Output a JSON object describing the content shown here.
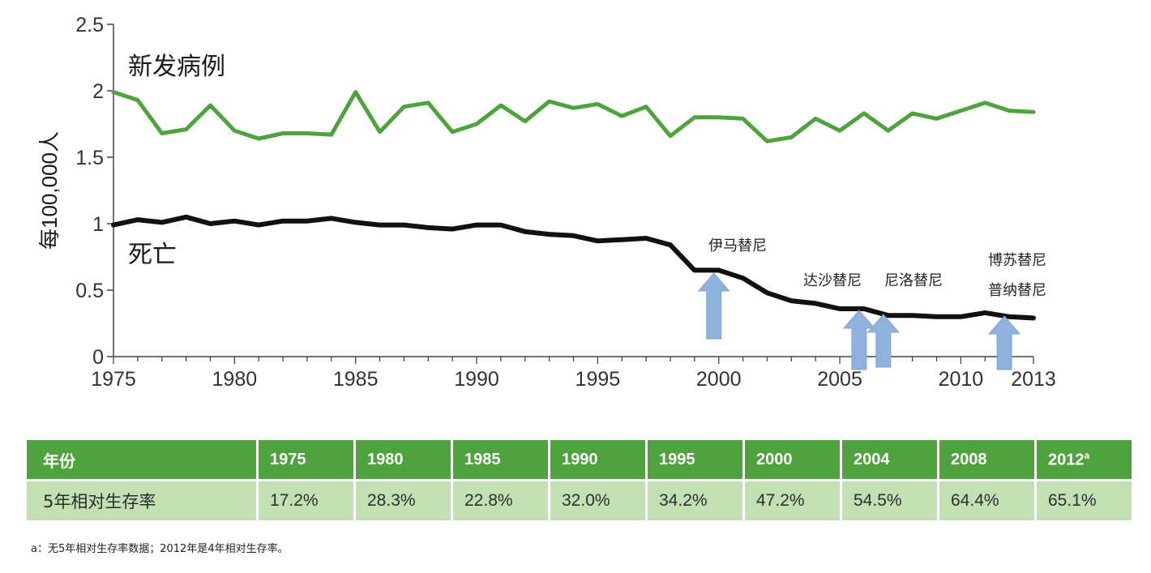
{
  "chart_data": {
    "type": "line",
    "ylabel": "每100,000人",
    "xlim": [
      1975,
      2013
    ],
    "ylim": [
      0,
      2.5
    ],
    "x_ticks": [
      1975,
      1980,
      1985,
      1990,
      1995,
      2000,
      2005,
      2010,
      2013
    ],
    "y_ticks": [
      "0",
      "0.5",
      "1",
      "1.5",
      "2",
      "2.5"
    ],
    "series": [
      {
        "name": "新发病例",
        "color": "#4ea33c",
        "x": [
          1975,
          1976,
          1977,
          1978,
          1979,
          1980,
          1981,
          1982,
          1983,
          1984,
          1985,
          1986,
          1987,
          1988,
          1989,
          1990,
          1991,
          1992,
          1993,
          1994,
          1995,
          1996,
          1997,
          1998,
          1999,
          2000,
          2001,
          2002,
          2003,
          2004,
          2005,
          2006,
          2007,
          2008,
          2009,
          2010,
          2011,
          2012,
          2013
        ],
        "y": [
          1.99,
          1.93,
          1.68,
          1.71,
          1.89,
          1.7,
          1.64,
          1.68,
          1.68,
          1.67,
          1.99,
          1.69,
          1.88,
          1.91,
          1.69,
          1.75,
          1.89,
          1.77,
          1.92,
          1.87,
          1.9,
          1.81,
          1.88,
          1.66,
          1.8,
          1.8,
          1.79,
          1.62,
          1.65,
          1.79,
          1.7,
          1.83,
          1.7,
          1.83,
          1.79,
          1.85,
          1.91,
          1.85,
          1.84
        ]
      },
      {
        "name": "死亡",
        "color": "#111111",
        "x": [
          1975,
          1976,
          1977,
          1978,
          1979,
          1980,
          1981,
          1982,
          1983,
          1984,
          1985,
          1986,
          1987,
          1988,
          1989,
          1990,
          1991,
          1992,
          1993,
          1994,
          1995,
          1996,
          1997,
          1998,
          1999,
          2000,
          2001,
          2002,
          2003,
          2004,
          2005,
          2006,
          2007,
          2008,
          2009,
          2010,
          2011,
          2012,
          2013
        ],
        "y": [
          0.99,
          1.03,
          1.01,
          1.05,
          1.0,
          1.02,
          0.99,
          1.02,
          1.02,
          1.04,
          1.01,
          0.99,
          0.99,
          0.97,
          0.96,
          0.99,
          0.99,
          0.94,
          0.92,
          0.91,
          0.87,
          0.88,
          0.89,
          0.84,
          0.65,
          0.65,
          0.59,
          0.48,
          0.42,
          0.4,
          0.36,
          0.36,
          0.31,
          0.31,
          0.3,
          0.3,
          0.33,
          0.3,
          0.29
        ]
      }
    ],
    "annotations": [
      {
        "label": "伊马替尼",
        "x": 2000
      },
      {
        "label": "达沙替尼",
        "x": 2006
      },
      {
        "label": "尼洛替尼",
        "x": 2007
      },
      {
        "label": "博苏替尼",
        "x": 2012
      },
      {
        "label": "普纳替尼",
        "x": 2012
      }
    ]
  },
  "table": {
    "header_label": "年份",
    "row_label": "5年相对生存率",
    "years": [
      "1975",
      "1980",
      "1985",
      "1990",
      "1995",
      "2000",
      "2004",
      "2008",
      "2012"
    ],
    "last_year_superscript": "a",
    "rates": [
      "17.2%",
      "28.3%",
      "22.8%",
      "32.0%",
      "34.2%",
      "47.2%",
      "54.5%",
      "64.4%",
      "65.1%"
    ]
  },
  "footnote": "a：无5年相对生存率数据；2012年是4年相对生存率。",
  "colors": {
    "green": "#4ea33c",
    "light_green": "#c3e0b3",
    "arrow_blue": "#8fb2dc"
  }
}
